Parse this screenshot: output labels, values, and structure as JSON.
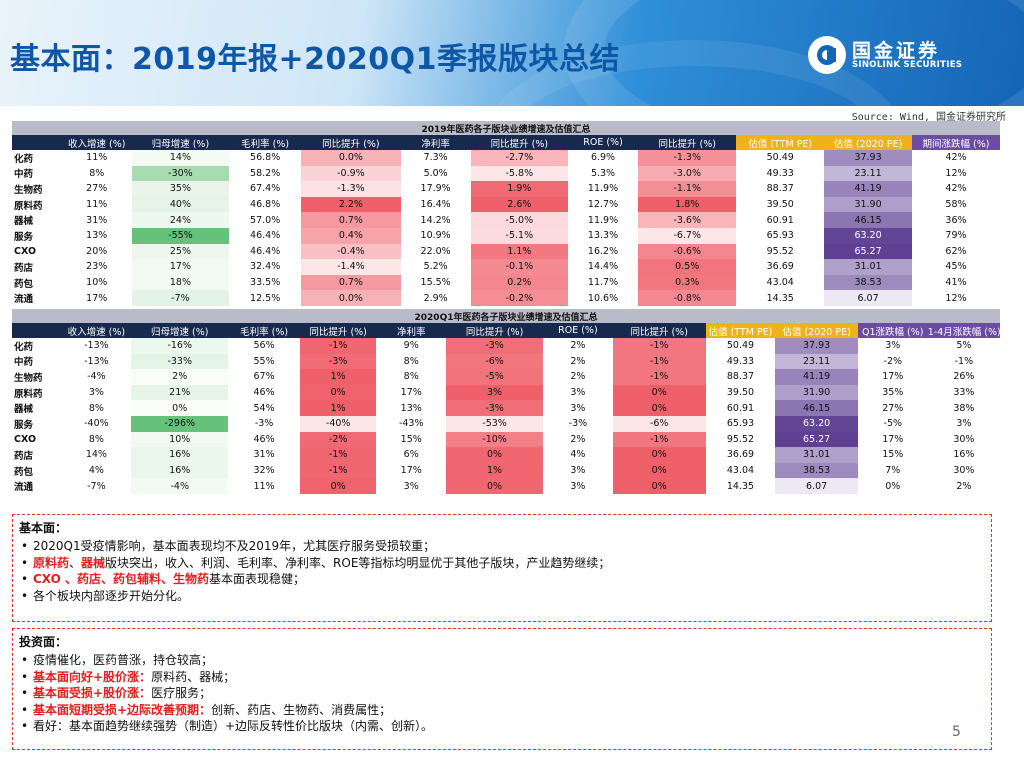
{
  "header": {
    "title": "基本面：2019年报+2020Q1季报版块总结",
    "logo_cn": "国金证券",
    "logo_en": "SINOLINK SECURITIES"
  },
  "source": "Source: Wind, 国金证券研究所",
  "table1": {
    "caption": "2019年医药各子版块业绩增速及估值汇总",
    "headers": [
      "",
      "收入增速 (%)",
      "归母增速 (%)",
      "毛利率 (%)",
      "同比提升 (%)",
      "净利率",
      "同比提升 (%)",
      "ROE (%)",
      "同比提升 (%)",
      "估值 (TTM PE)",
      "估值 (2020 PE)",
      "期间涨跌幅 (%)"
    ],
    "rows": [
      [
        "化药",
        "11%",
        "14%",
        "56.8%",
        "0.0%",
        "7.3%",
        "-2.7%",
        "6.9%",
        "-1.3%",
        "50.49",
        "37.93",
        "42%"
      ],
      [
        "中药",
        "8%",
        "-30%",
        "58.2%",
        "-0.9%",
        "5.0%",
        "-5.8%",
        "5.3%",
        "-3.0%",
        "49.33",
        "23.11",
        "12%"
      ],
      [
        "生物药",
        "27%",
        "35%",
        "67.4%",
        "-1.3%",
        "17.9%",
        "1.9%",
        "11.9%",
        "-1.1%",
        "88.37",
        "41.19",
        "42%"
      ],
      [
        "原料药",
        "11%",
        "40%",
        "46.8%",
        "2.2%",
        "16.4%",
        "2.6%",
        "12.7%",
        "1.8%",
        "39.50",
        "31.90",
        "58%"
      ],
      [
        "器械",
        "31%",
        "24%",
        "57.0%",
        "0.7%",
        "14.2%",
        "-5.0%",
        "11.9%",
        "-3.6%",
        "60.91",
        "46.15",
        "36%"
      ],
      [
        "服务",
        "13%",
        "-55%",
        "46.4%",
        "0.4%",
        "10.9%",
        "-5.1%",
        "13.3%",
        "-6.7%",
        "65.93",
        "63.20",
        "79%"
      ],
      [
        "CXO",
        "20%",
        "25%",
        "46.4%",
        "-0.4%",
        "22.0%",
        "1.1%",
        "16.2%",
        "-0.6%",
        "95.52",
        "65.27",
        "62%"
      ],
      [
        "药店",
        "23%",
        "17%",
        "32.4%",
        "-1.4%",
        "5.2%",
        "-0.1%",
        "14.4%",
        "0.5%",
        "36.69",
        "31.01",
        "45%"
      ],
      [
        "药包",
        "10%",
        "18%",
        "33.5%",
        "0.7%",
        "15.5%",
        "0.2%",
        "11.7%",
        "0.3%",
        "43.04",
        "38.53",
        "41%"
      ],
      [
        "流通",
        "17%",
        "-7%",
        "12.5%",
        "0.0%",
        "2.9%",
        "-0.2%",
        "10.6%",
        "-0.8%",
        "14.35",
        "6.07",
        "12%"
      ]
    ]
  },
  "table2": {
    "caption": "2020Q1年医药各子版块业绩增速及估值汇总",
    "headers": [
      "",
      "收入增速 (%)",
      "归母增速 (%)",
      "毛利率 (%)",
      "同比提升 (%)",
      "净利率",
      "同比提升 (%)",
      "ROE (%)",
      "同比提升 (%)",
      "估值 (TTM PE)",
      "估值 (2020 PE)",
      "Q1涨跌幅 (%)",
      "1-4月涨跌幅 (%)"
    ],
    "rows": [
      [
        "化药",
        "-13%",
        "-16%",
        "56%",
        "-1%",
        "9%",
        "-3%",
        "2%",
        "-1%",
        "50.49",
        "37.93",
        "3%",
        "5%"
      ],
      [
        "中药",
        "-13%",
        "-33%",
        "55%",
        "-3%",
        "8%",
        "-6%",
        "2%",
        "-1%",
        "49.33",
        "23.11",
        "-2%",
        "-1%"
      ],
      [
        "生物药",
        "-4%",
        "2%",
        "67%",
        "1%",
        "8%",
        "-5%",
        "2%",
        "-1%",
        "88.37",
        "41.19",
        "17%",
        "26%"
      ],
      [
        "原料药",
        "3%",
        "21%",
        "46%",
        "0%",
        "17%",
        "3%",
        "3%",
        "0%",
        "39.50",
        "31.90",
        "35%",
        "33%"
      ],
      [
        "器械",
        "8%",
        "0%",
        "54%",
        "1%",
        "13%",
        "-3%",
        "3%",
        "0%",
        "60.91",
        "46.15",
        "27%",
        "38%"
      ],
      [
        "服务",
        "-40%",
        "-296%",
        "-3%",
        "-40%",
        "-43%",
        "-53%",
        "-3%",
        "-6%",
        "65.93",
        "63.20",
        "-5%",
        "3%"
      ],
      [
        "CXO",
        "8%",
        "10%",
        "46%",
        "-2%",
        "15%",
        "-10%",
        "2%",
        "-1%",
        "95.52",
        "65.27",
        "17%",
        "30%"
      ],
      [
        "药店",
        "14%",
        "16%",
        "31%",
        "-1%",
        "6%",
        "0%",
        "4%",
        "0%",
        "36.69",
        "31.01",
        "15%",
        "16%"
      ],
      [
        "药包",
        "4%",
        "16%",
        "32%",
        "-1%",
        "17%",
        "1%",
        "3%",
        "0%",
        "43.04",
        "38.53",
        "7%",
        "30%"
      ],
      [
        "流通",
        "-7%",
        "-4%",
        "11%",
        "0%",
        "3%",
        "0%",
        "3%",
        "0%",
        "14.35",
        "6.07",
        "0%",
        "2%"
      ]
    ]
  },
  "fundamentals": {
    "heading": "基本面：",
    "bullets": [
      [
        {
          "t": "2020Q1受疫情影响，基本面表现均不及2019年，尤其医疗服务受损较重；",
          "red": false
        }
      ],
      [
        {
          "t": "原料药",
          "red": true
        },
        {
          "t": "、",
          "red": false
        },
        {
          "t": "器械",
          "red": true
        },
        {
          "t": "版块突出，收入、利润、毛利率、净利率、ROE等指标均明显优于其他子版块，产业趋势继续；",
          "red": false
        }
      ],
      [
        {
          "t": "CXO 、药店、药包辅料、生物药",
          "red": true
        },
        {
          "t": "基本面表现稳健；",
          "red": false
        }
      ],
      [
        {
          "t": "各个板块内部逐步开始分化。",
          "red": false
        }
      ]
    ]
  },
  "investment": {
    "heading": "投资面：",
    "bullets": [
      [
        {
          "t": "疫情催化，医药普涨，持仓较高；",
          "red": false
        }
      ],
      [
        {
          "t": "基本面向好+股价涨：",
          "red": true
        },
        {
          "t": "原料药、器械；",
          "red": false
        }
      ],
      [
        {
          "t": "基本面受损+股价涨：",
          "red": true
        },
        {
          "t": "医疗服务；",
          "red": false
        }
      ],
      [
        {
          "t": "基本面短期受损+边际改善预期：",
          "red": true
        },
        {
          "t": "创新、药店、生物药、消费属性；",
          "red": false
        }
      ],
      [
        {
          "t": "看好：基本面趋势继续强势（制造）+边际反转性价比版块（内需、创新）。",
          "red": false
        }
      ]
    ]
  },
  "page_number": "5",
  "colors": {
    "header_navy": "#17294d",
    "gold": "#f0b21a",
    "purple": "#6a4ca3",
    "caption_gray": "#b9bcc8",
    "accent_red": "#e02020"
  }
}
